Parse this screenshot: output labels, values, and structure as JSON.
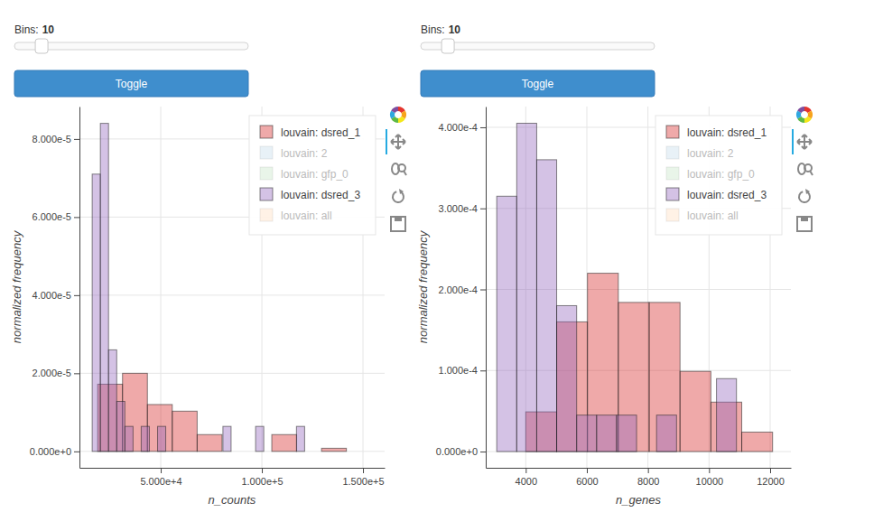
{
  "chart_data": [
    {
      "type": "histogram",
      "slider": {
        "title": "Bins:",
        "value": 10,
        "start": 1,
        "end": 100
      },
      "button": "Toggle",
      "x_label": "n_counts",
      "y_label": "normalized frequency",
      "xlim": [
        9800,
        160700
      ],
      "ylim": [
        -4.2e-06,
        8.83e-05
      ],
      "xticks": [
        {
          "value": 50000,
          "label": "5.000e+4"
        },
        {
          "value": 100000,
          "label": "1.000e+5"
        },
        {
          "value": 150000,
          "label": "1.500e+5"
        }
      ],
      "yticks": [
        {
          "value": 0,
          "label": "0.000e+0"
        },
        {
          "value": 2e-05,
          "label": "2.000e-5"
        },
        {
          "value": 4e-05,
          "label": "4.000e-5"
        },
        {
          "value": 6e-05,
          "label": "6.000e-5"
        },
        {
          "value": 8e-05,
          "label": "8.000e-5"
        }
      ],
      "grid": true,
      "legend": "top_right",
      "series": [
        {
          "name": "louvain: dsred_1",
          "color": "#d62728",
          "bins": [
            18800,
            31100,
            43400,
            55700,
            68000,
            80300,
            92600,
            104900,
            117200,
            129500,
            141800
          ],
          "values": [
            1.72e-05,
            2e-05,
            1.2e-05,
            1.03e-05,
            4.3e-06,
            0,
            0,
            4.3e-06,
            0,
            8e-07
          ]
        },
        {
          "name": "louvain: 2",
          "color": "#1f77b4"
        },
        {
          "name": "louvain: gfp_0",
          "color": "#2ca02c"
        },
        {
          "name": "louvain: dsred_3",
          "color": "#9467bd",
          "bins": [
            16100,
            20140,
            24180,
            28220,
            32260,
            36300,
            40340,
            44380,
            48420,
            52460,
            56500,
            60540,
            64580,
            68620,
            72660,
            76700,
            80740,
            84780,
            88820,
            92860,
            96900,
            100940,
            104980,
            109020,
            113060,
            117100,
            121140
          ],
          "values": [
            7.1e-05,
            8.4e-05,
            2.6e-05,
            1.28e-05,
            6.4e-06,
            0,
            6.4e-06,
            0,
            6.4e-06,
            0,
            0,
            0,
            0,
            0,
            0,
            0,
            6.4e-06,
            0,
            0,
            0,
            6.4e-06,
            0,
            0,
            0,
            0,
            6.4e-06
          ]
        },
        {
          "name": "louvain: all",
          "color": "#ff7f0e"
        }
      ]
    },
    {
      "type": "histogram",
      "slider": {
        "title": "Bins:",
        "value": 10,
        "start": 1,
        "end": 100
      },
      "button": "Toggle",
      "x_label": "n_genes",
      "y_label": "normalized frequency",
      "xlim": [
        2690,
        12680
      ],
      "ylim": [
        -2e-05,
        0.0004256
      ],
      "xticks": [
        4000,
        6000,
        8000,
        10000,
        12000
      ],
      "yticks": [
        {
          "value": 0,
          "label": "0.000e+0"
        },
        {
          "value": 0.0001,
          "label": "1.000e-4"
        },
        {
          "value": 0.0002,
          "label": "2.000e-4"
        },
        {
          "value": 0.0003,
          "label": "3.000e-4"
        },
        {
          "value": 0.0004,
          "label": "4.000e-4"
        }
      ],
      "grid": true,
      "legend": "top_right",
      "series": [
        {
          "name": "louvain: dsred_1",
          "color": "#d62728",
          "bins": [
            4000,
            5010,
            6020,
            7030,
            8040,
            9050,
            10060,
            11070,
            12080
          ],
          "values": [
            4.9e-05,
            0.00016,
            0.00022,
            0.000184,
            0.000184,
            9.9e-05,
            6.1e-05,
            2.4e-05
          ]
        },
        {
          "name": "louvain: 2",
          "color": "#1f77b4"
        },
        {
          "name": "louvain: gfp_0",
          "color": "#2ca02c"
        },
        {
          "name": "louvain: dsred_3",
          "color": "#9467bd",
          "bins": [
            3050,
            3704,
            4358,
            5012,
            5666,
            6320,
            6974,
            7628,
            8282,
            8936,
            9590,
            10244,
            10898
          ],
          "values": [
            0.000315,
            0.000405,
            0.00036,
            0.00018,
            4.5e-05,
            4.5e-05,
            4.5e-05,
            0,
            4.5e-05,
            0,
            0,
            9e-05
          ]
        },
        {
          "name": "louvain: all",
          "color": "#ff7f0e"
        }
      ]
    }
  ]
}
